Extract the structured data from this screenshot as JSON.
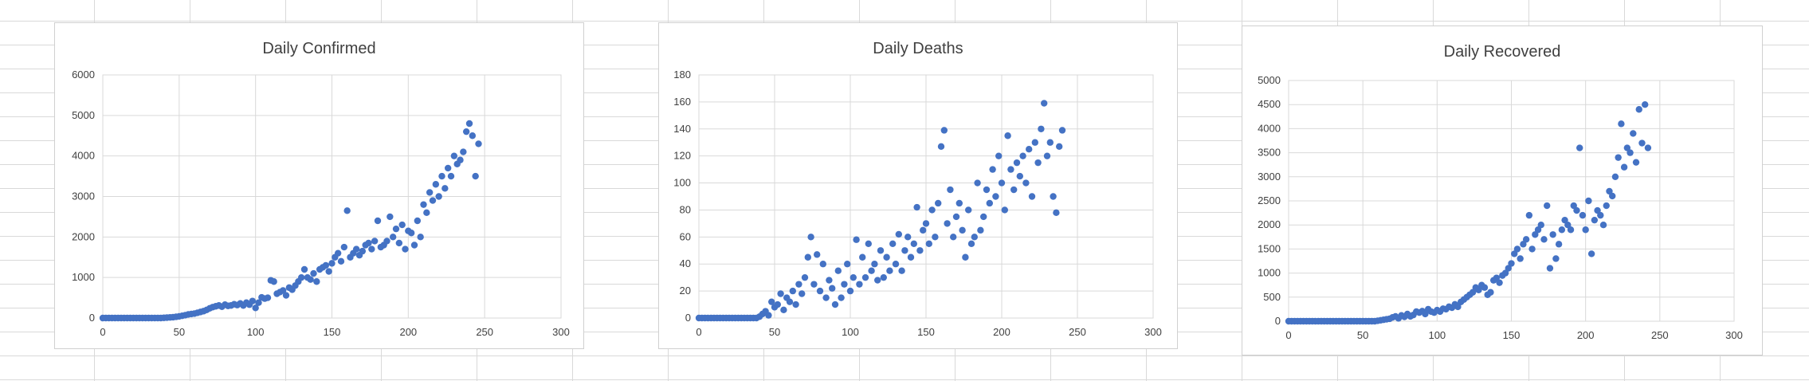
{
  "chart_data": [
    {
      "type": "scatter",
      "title": "Daily Confirmed",
      "xlabel": "",
      "ylabel": "",
      "xlim": [
        0,
        300
      ],
      "ylim": [
        0,
        6000
      ],
      "x_ticks": [
        0,
        50,
        100,
        150,
        200,
        250,
        300
      ],
      "y_ticks": [
        0,
        1000,
        2000,
        3000,
        4000,
        5000,
        6000
      ],
      "grid": true,
      "legend": "none",
      "color": "#4472c4",
      "points": [
        [
          0,
          0
        ],
        [
          2,
          0
        ],
        [
          4,
          0
        ],
        [
          6,
          0
        ],
        [
          8,
          0
        ],
        [
          10,
          0
        ],
        [
          12,
          0
        ],
        [
          14,
          0
        ],
        [
          16,
          0
        ],
        [
          18,
          0
        ],
        [
          20,
          0
        ],
        [
          22,
          0
        ],
        [
          24,
          0
        ],
        [
          26,
          0
        ],
        [
          28,
          0
        ],
        [
          30,
          0
        ],
        [
          32,
          0
        ],
        [
          34,
          0
        ],
        [
          36,
          0
        ],
        [
          38,
          0
        ],
        [
          40,
          5
        ],
        [
          42,
          10
        ],
        [
          44,
          15
        ],
        [
          46,
          20
        ],
        [
          48,
          30
        ],
        [
          50,
          40
        ],
        [
          52,
          55
        ],
        [
          54,
          70
        ],
        [
          56,
          90
        ],
        [
          58,
          100
        ],
        [
          60,
          110
        ],
        [
          62,
          130
        ],
        [
          64,
          150
        ],
        [
          66,
          170
        ],
        [
          68,
          200
        ],
        [
          70,
          240
        ],
        [
          72,
          270
        ],
        [
          74,
          290
        ],
        [
          76,
          310
        ],
        [
          78,
          280
        ],
        [
          80,
          330
        ],
        [
          82,
          300
        ],
        [
          84,
          310
        ],
        [
          86,
          340
        ],
        [
          88,
          320
        ],
        [
          90,
          360
        ],
        [
          92,
          310
        ],
        [
          94,
          380
        ],
        [
          96,
          330
        ],
        [
          98,
          420
        ],
        [
          100,
          250
        ],
        [
          102,
          380
        ],
        [
          104,
          510
        ],
        [
          106,
          480
        ],
        [
          108,
          500
        ],
        [
          110,
          930
        ],
        [
          112,
          900
        ],
        [
          114,
          600
        ],
        [
          116,
          640
        ],
        [
          118,
          680
        ],
        [
          120,
          560
        ],
        [
          122,
          750
        ],
        [
          124,
          700
        ],
        [
          126,
          800
        ],
        [
          128,
          900
        ],
        [
          130,
          1000
        ],
        [
          132,
          1200
        ],
        [
          134,
          1000
        ],
        [
          136,
          950
        ],
        [
          138,
          1100
        ],
        [
          140,
          900
        ],
        [
          142,
          1200
        ],
        [
          144,
          1250
        ],
        [
          146,
          1300
        ],
        [
          148,
          1150
        ],
        [
          150,
          1350
        ],
        [
          152,
          1500
        ],
        [
          154,
          1600
        ],
        [
          156,
          1400
        ],
        [
          158,
          1750
        ],
        [
          160,
          2650
        ],
        [
          162,
          1500
        ],
        [
          164,
          1600
        ],
        [
          166,
          1700
        ],
        [
          168,
          1550
        ],
        [
          170,
          1650
        ],
        [
          172,
          1800
        ],
        [
          174,
          1850
        ],
        [
          176,
          1700
        ],
        [
          178,
          1900
        ],
        [
          180,
          2400
        ],
        [
          182,
          1750
        ],
        [
          184,
          1800
        ],
        [
          186,
          1900
        ],
        [
          188,
          2500
        ],
        [
          190,
          2000
        ],
        [
          192,
          2200
        ],
        [
          194,
          1850
        ],
        [
          196,
          2300
        ],
        [
          198,
          1700
        ],
        [
          200,
          2150
        ],
        [
          202,
          2100
        ],
        [
          204,
          1800
        ],
        [
          206,
          2400
        ],
        [
          208,
          2000
        ],
        [
          210,
          2800
        ],
        [
          212,
          2600
        ],
        [
          214,
          3100
        ],
        [
          216,
          2900
        ],
        [
          218,
          3300
        ],
        [
          220,
          3000
        ],
        [
          222,
          3500
        ],
        [
          224,
          3200
        ],
        [
          226,
          3700
        ],
        [
          228,
          3500
        ],
        [
          230,
          4000
        ],
        [
          232,
          3800
        ],
        [
          234,
          3900
        ],
        [
          236,
          4100
        ],
        [
          238,
          4600
        ],
        [
          240,
          4800
        ],
        [
          242,
          4500
        ],
        [
          244,
          3500
        ],
        [
          246,
          4300
        ]
      ]
    },
    {
      "type": "scatter",
      "title": "Daily Deaths",
      "xlabel": "",
      "ylabel": "",
      "xlim": [
        0,
        300
      ],
      "ylim": [
        0,
        180
      ],
      "x_ticks": [
        0,
        50,
        100,
        150,
        200,
        250,
        300
      ],
      "y_ticks": [
        0,
        20,
        40,
        60,
        80,
        100,
        120,
        140,
        160,
        180
      ],
      "grid": true,
      "legend": "none",
      "color": "#4472c4",
      "points": [
        [
          0,
          0
        ],
        [
          2,
          0
        ],
        [
          4,
          0
        ],
        [
          6,
          0
        ],
        [
          8,
          0
        ],
        [
          10,
          0
        ],
        [
          12,
          0
        ],
        [
          14,
          0
        ],
        [
          16,
          0
        ],
        [
          18,
          0
        ],
        [
          20,
          0
        ],
        [
          22,
          0
        ],
        [
          24,
          0
        ],
        [
          26,
          0
        ],
        [
          28,
          0
        ],
        [
          30,
          0
        ],
        [
          32,
          0
        ],
        [
          34,
          0
        ],
        [
          36,
          0
        ],
        [
          38,
          0
        ],
        [
          40,
          1
        ],
        [
          42,
          3
        ],
        [
          44,
          5
        ],
        [
          46,
          2
        ],
        [
          48,
          12
        ],
        [
          50,
          8
        ],
        [
          52,
          10
        ],
        [
          54,
          18
        ],
        [
          56,
          6
        ],
        [
          58,
          15
        ],
        [
          60,
          12
        ],
        [
          62,
          20
        ],
        [
          64,
          10
        ],
        [
          66,
          25
        ],
        [
          68,
          18
        ],
        [
          70,
          30
        ],
        [
          72,
          45
        ],
        [
          74,
          60
        ],
        [
          76,
          25
        ],
        [
          78,
          47
        ],
        [
          80,
          20
        ],
        [
          82,
          40
        ],
        [
          84,
          15
        ],
        [
          86,
          28
        ],
        [
          88,
          22
        ],
        [
          90,
          10
        ],
        [
          92,
          35
        ],
        [
          94,
          15
        ],
        [
          96,
          25
        ],
        [
          98,
          40
        ],
        [
          100,
          20
        ],
        [
          102,
          30
        ],
        [
          104,
          58
        ],
        [
          106,
          25
        ],
        [
          108,
          45
        ],
        [
          110,
          30
        ],
        [
          112,
          55
        ],
        [
          114,
          35
        ],
        [
          116,
          40
        ],
        [
          118,
          28
        ],
        [
          120,
          50
        ],
        [
          122,
          30
        ],
        [
          124,
          45
        ],
        [
          126,
          35
        ],
        [
          128,
          55
        ],
        [
          130,
          40
        ],
        [
          132,
          62
        ],
        [
          134,
          35
        ],
        [
          136,
          50
        ],
        [
          138,
          60
        ],
        [
          140,
          45
        ],
        [
          142,
          55
        ],
        [
          144,
          82
        ],
        [
          146,
          50
        ],
        [
          148,
          65
        ],
        [
          150,
          70
        ],
        [
          152,
          55
        ],
        [
          154,
          80
        ],
        [
          156,
          60
        ],
        [
          158,
          85
        ],
        [
          160,
          127
        ],
        [
          162,
          139
        ],
        [
          164,
          70
        ],
        [
          166,
          95
        ],
        [
          168,
          60
        ],
        [
          170,
          75
        ],
        [
          172,
          85
        ],
        [
          174,
          65
        ],
        [
          176,
          45
        ],
        [
          178,
          80
        ],
        [
          180,
          55
        ],
        [
          182,
          60
        ],
        [
          184,
          100
        ],
        [
          186,
          65
        ],
        [
          188,
          75
        ],
        [
          190,
          95
        ],
        [
          192,
          85
        ],
        [
          194,
          110
        ],
        [
          196,
          90
        ],
        [
          198,
          120
        ],
        [
          200,
          100
        ],
        [
          202,
          80
        ],
        [
          204,
          135
        ],
        [
          206,
          110
        ],
        [
          208,
          95
        ],
        [
          210,
          115
        ],
        [
          212,
          105
        ],
        [
          214,
          120
        ],
        [
          216,
          100
        ],
        [
          218,
          125
        ],
        [
          220,
          90
        ],
        [
          222,
          130
        ],
        [
          224,
          115
        ],
        [
          226,
          140
        ],
        [
          228,
          159
        ],
        [
          230,
          120
        ],
        [
          232,
          130
        ],
        [
          234,
          90
        ],
        [
          236,
          78
        ],
        [
          238,
          127
        ],
        [
          240,
          139
        ]
      ]
    },
    {
      "type": "scatter",
      "title": "Daily Recovered",
      "xlabel": "",
      "ylabel": "",
      "xlim": [
        0,
        300
      ],
      "ylim": [
        0,
        5000
      ],
      "x_ticks": [
        0,
        50,
        100,
        150,
        200,
        250,
        300
      ],
      "y_ticks": [
        0,
        500,
        1000,
        1500,
        2000,
        2500,
        3000,
        3500,
        4000,
        4500,
        5000
      ],
      "grid": true,
      "legend": "none",
      "color": "#4472c4",
      "points": [
        [
          0,
          0
        ],
        [
          2,
          0
        ],
        [
          4,
          0
        ],
        [
          6,
          0
        ],
        [
          8,
          0
        ],
        [
          10,
          0
        ],
        [
          12,
          0
        ],
        [
          14,
          0
        ],
        [
          16,
          0
        ],
        [
          18,
          0
        ],
        [
          20,
          0
        ],
        [
          22,
          0
        ],
        [
          24,
          0
        ],
        [
          26,
          0
        ],
        [
          28,
          0
        ],
        [
          30,
          0
        ],
        [
          32,
          0
        ],
        [
          34,
          0
        ],
        [
          36,
          0
        ],
        [
          38,
          0
        ],
        [
          40,
          0
        ],
        [
          42,
          0
        ],
        [
          44,
          0
        ],
        [
          46,
          0
        ],
        [
          48,
          0
        ],
        [
          50,
          0
        ],
        [
          52,
          0
        ],
        [
          54,
          0
        ],
        [
          56,
          0
        ],
        [
          58,
          0
        ],
        [
          60,
          10
        ],
        [
          62,
          20
        ],
        [
          64,
          30
        ],
        [
          66,
          40
        ],
        [
          68,
          50
        ],
        [
          70,
          80
        ],
        [
          72,
          100
        ],
        [
          74,
          60
        ],
        [
          76,
          120
        ],
        [
          78,
          90
        ],
        [
          80,
          150
        ],
        [
          82,
          100
        ],
        [
          84,
          130
        ],
        [
          86,
          200
        ],
        [
          88,
          180
        ],
        [
          90,
          210
        ],
        [
          92,
          150
        ],
        [
          94,
          250
        ],
        [
          96,
          200
        ],
        [
          98,
          180
        ],
        [
          100,
          230
        ],
        [
          102,
          200
        ],
        [
          104,
          260
        ],
        [
          106,
          250
        ],
        [
          108,
          300
        ],
        [
          110,
          280
        ],
        [
          112,
          350
        ],
        [
          114,
          300
        ],
        [
          116,
          400
        ],
        [
          118,
          450
        ],
        [
          120,
          500
        ],
        [
          122,
          550
        ],
        [
          124,
          600
        ],
        [
          126,
          700
        ],
        [
          128,
          650
        ],
        [
          130,
          750
        ],
        [
          132,
          700
        ],
        [
          134,
          550
        ],
        [
          136,
          600
        ],
        [
          138,
          850
        ],
        [
          140,
          900
        ],
        [
          142,
          800
        ],
        [
          144,
          950
        ],
        [
          146,
          1000
        ],
        [
          148,
          1100
        ],
        [
          150,
          1200
        ],
        [
          152,
          1400
        ],
        [
          154,
          1500
        ],
        [
          156,
          1300
        ],
        [
          158,
          1600
        ],
        [
          160,
          1700
        ],
        [
          162,
          2200
        ],
        [
          164,
          1500
        ],
        [
          166,
          1800
        ],
        [
          168,
          1900
        ],
        [
          170,
          2000
        ],
        [
          172,
          1700
        ],
        [
          174,
          2400
        ],
        [
          176,
          1100
        ],
        [
          178,
          1800
        ],
        [
          180,
          1300
        ],
        [
          182,
          1600
        ],
        [
          184,
          1900
        ],
        [
          186,
          2100
        ],
        [
          188,
          2000
        ],
        [
          190,
          1900
        ],
        [
          192,
          2400
        ],
        [
          194,
          2300
        ],
        [
          196,
          3600
        ],
        [
          198,
          2200
        ],
        [
          200,
          1900
        ],
        [
          202,
          2500
        ],
        [
          204,
          1400
        ],
        [
          206,
          2100
        ],
        [
          208,
          2300
        ],
        [
          210,
          2200
        ],
        [
          212,
          2000
        ],
        [
          214,
          2400
        ],
        [
          216,
          2700
        ],
        [
          218,
          2600
        ],
        [
          220,
          3000
        ],
        [
          222,
          3400
        ],
        [
          224,
          4100
        ],
        [
          226,
          3200
        ],
        [
          228,
          3600
        ],
        [
          230,
          3500
        ],
        [
          232,
          3900
        ],
        [
          234,
          3300
        ],
        [
          236,
          4400
        ],
        [
          238,
          3700
        ],
        [
          240,
          4500
        ],
        [
          242,
          3600
        ]
      ]
    }
  ]
}
